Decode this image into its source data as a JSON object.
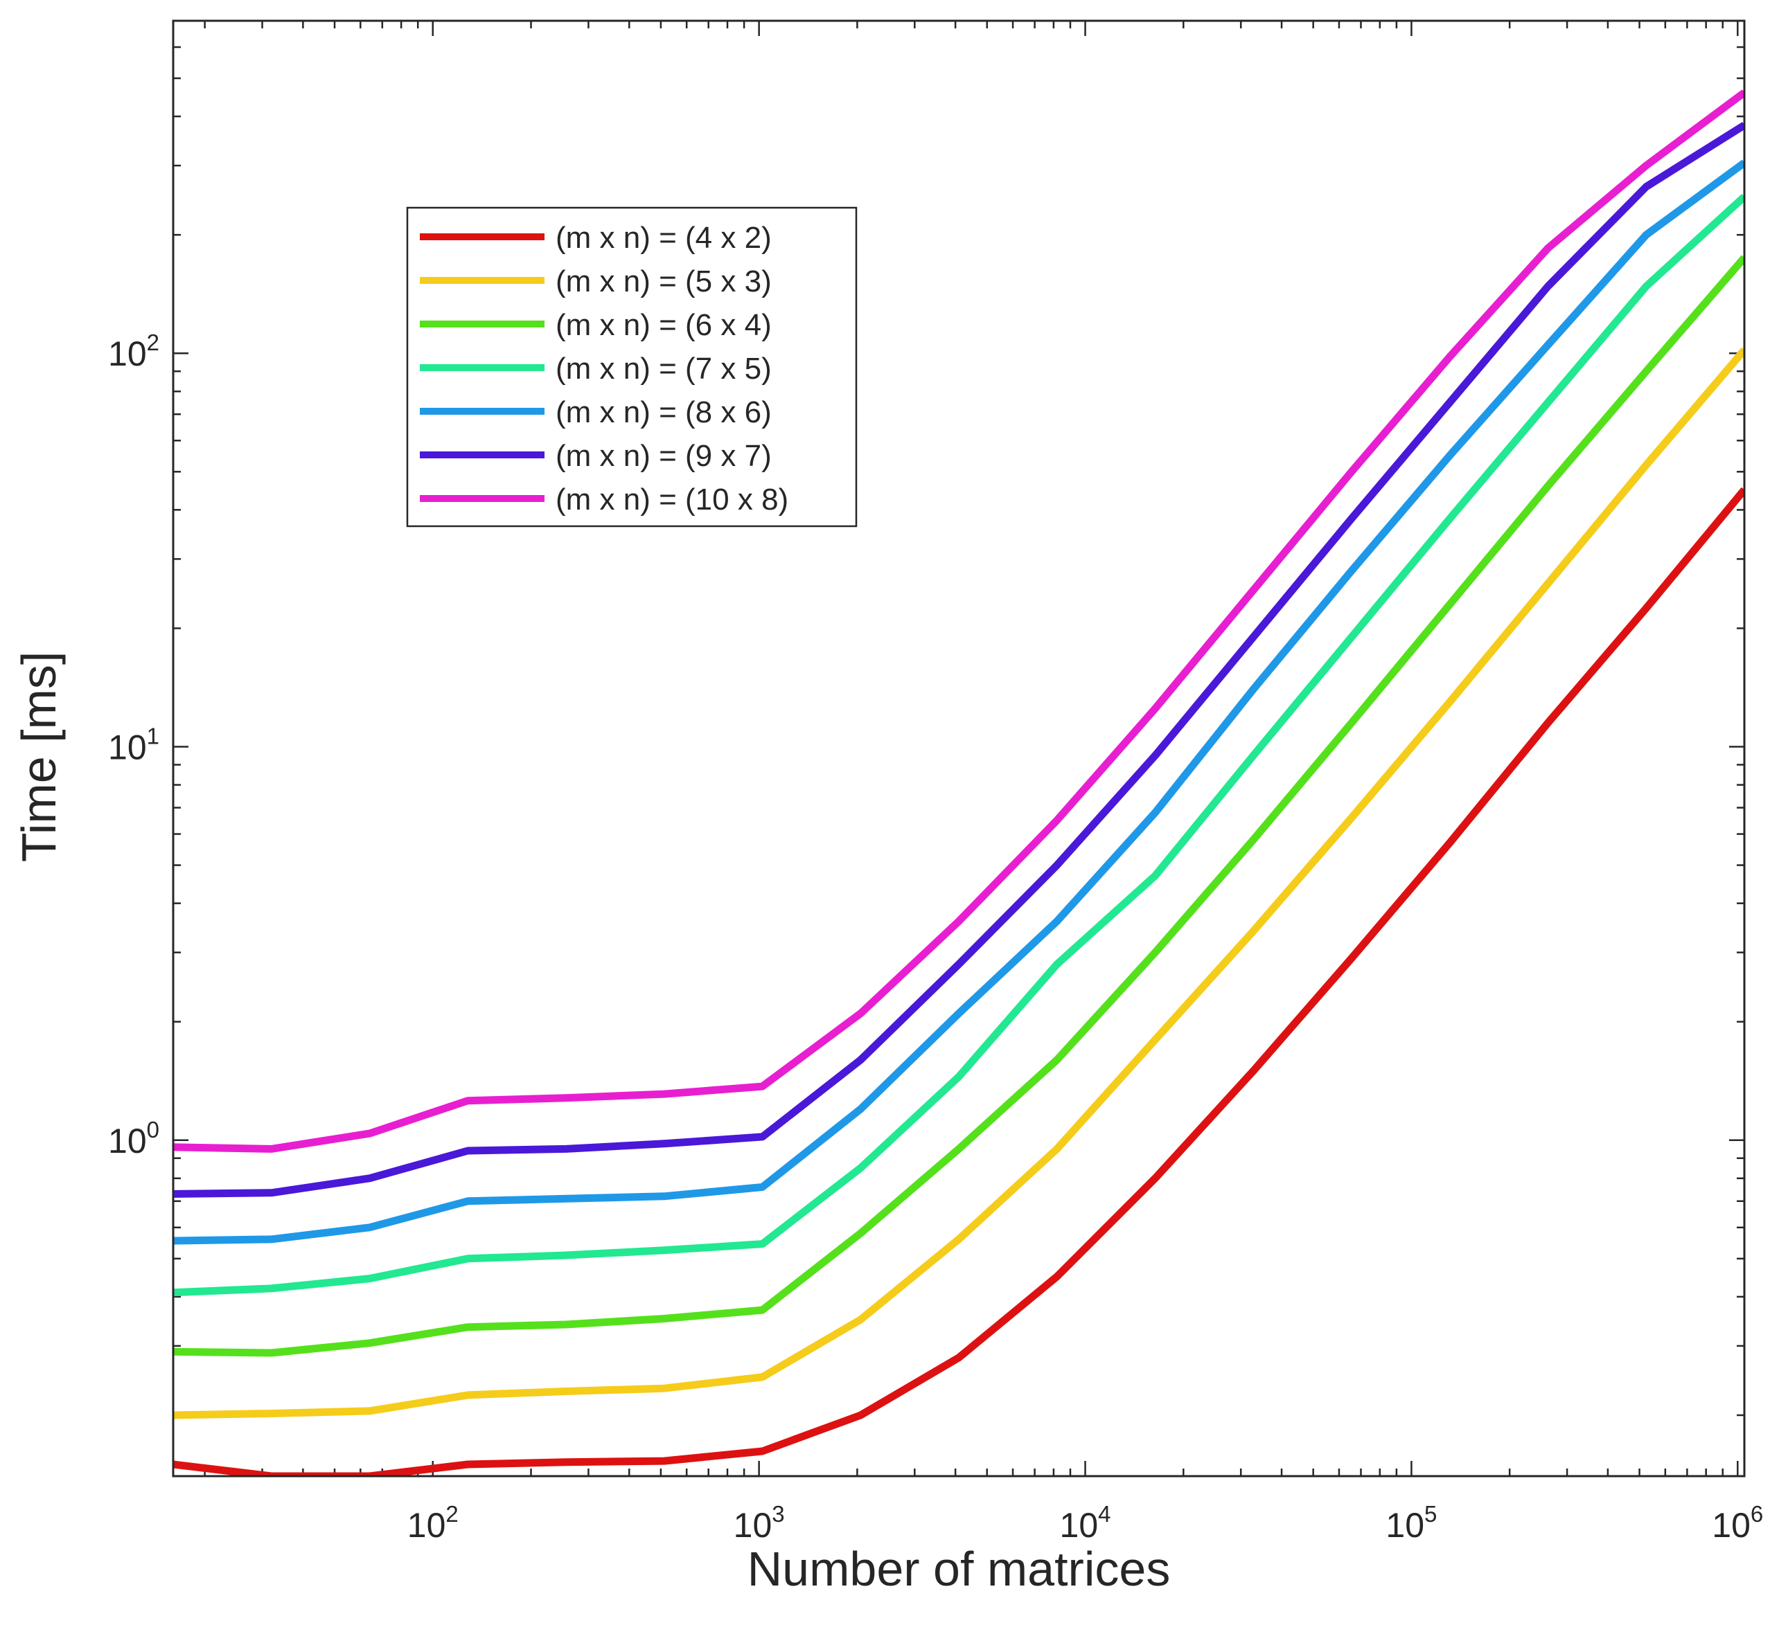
{
  "chart_data": {
    "type": "line",
    "xscale": "log",
    "yscale": "log",
    "xlabel": "Number of matrices",
    "ylabel": "Time [ms]",
    "xlim": [
      16,
      1048576
    ],
    "ylim": [
      0.14,
      700
    ],
    "x_ticks": [
      {
        "value": 100,
        "base": "10",
        "exp": "2"
      },
      {
        "value": 1000,
        "base": "10",
        "exp": "3"
      },
      {
        "value": 10000,
        "base": "10",
        "exp": "4"
      },
      {
        "value": 100000,
        "base": "10",
        "exp": "5"
      },
      {
        "value": 1000000,
        "base": "10",
        "exp": "6"
      }
    ],
    "y_ticks": [
      {
        "value": 1,
        "base": "10",
        "exp": "0"
      },
      {
        "value": 10,
        "base": "10",
        "exp": "1"
      },
      {
        "value": 100,
        "base": "10",
        "exp": "2"
      }
    ],
    "x": [
      16,
      32,
      64,
      128,
      256,
      512,
      1024,
      2048,
      4096,
      8192,
      16384,
      32768,
      65536,
      131072,
      262144,
      524288,
      1048576
    ],
    "series": [
      {
        "name": "(m x n) = (4 x 2)",
        "color": "#dd1111",
        "values": [
          0.15,
          0.14,
          0.14,
          0.15,
          0.152,
          0.153,
          0.162,
          0.2,
          0.28,
          0.45,
          0.8,
          1.5,
          2.9,
          5.7,
          11.5,
          22.5,
          45
        ]
      },
      {
        "name": "(m x n) = (5 x 3)",
        "color": "#f5cc1a",
        "values": [
          0.2,
          0.202,
          0.205,
          0.225,
          0.23,
          0.234,
          0.25,
          0.35,
          0.56,
          0.95,
          1.8,
          3.4,
          6.6,
          13,
          26,
          52,
          102
        ]
      },
      {
        "name": "(m x n) = (6 x 4)",
        "color": "#55e01c",
        "values": [
          0.29,
          0.288,
          0.305,
          0.335,
          0.34,
          0.352,
          0.37,
          0.58,
          0.95,
          1.6,
          3,
          5.8,
          11.5,
          23,
          46,
          90,
          175
        ]
      },
      {
        "name": "(m x n) = (7 x 5)",
        "color": "#22e891",
        "values": [
          0.41,
          0.42,
          0.445,
          0.5,
          0.51,
          0.525,
          0.545,
          0.85,
          1.45,
          2.8,
          4.7,
          9.5,
          19,
          38,
          75,
          148,
          250
        ]
      },
      {
        "name": "(m x n) = (8 x 6)",
        "color": "#1f98e8",
        "values": [
          0.555,
          0.56,
          0.6,
          0.7,
          0.71,
          0.72,
          0.76,
          1.2,
          2.1,
          3.6,
          6.8,
          14,
          28,
          55,
          105,
          200,
          305
        ]
      },
      {
        "name": "(m x n) = (9 x 7)",
        "color": "#4a18d8",
        "values": [
          0.73,
          0.735,
          0.8,
          0.94,
          0.95,
          0.98,
          1.02,
          1.6,
          2.8,
          5,
          9.5,
          19,
          38,
          75,
          148,
          265,
          380
        ]
      },
      {
        "name": "(m x n) = (10 x 8)",
        "color": "#e81fd0",
        "values": [
          0.96,
          0.95,
          1.04,
          1.26,
          1.28,
          1.31,
          1.37,
          2.1,
          3.6,
          6.5,
          12.5,
          25,
          50,
          98,
          185,
          300,
          460
        ]
      }
    ]
  }
}
